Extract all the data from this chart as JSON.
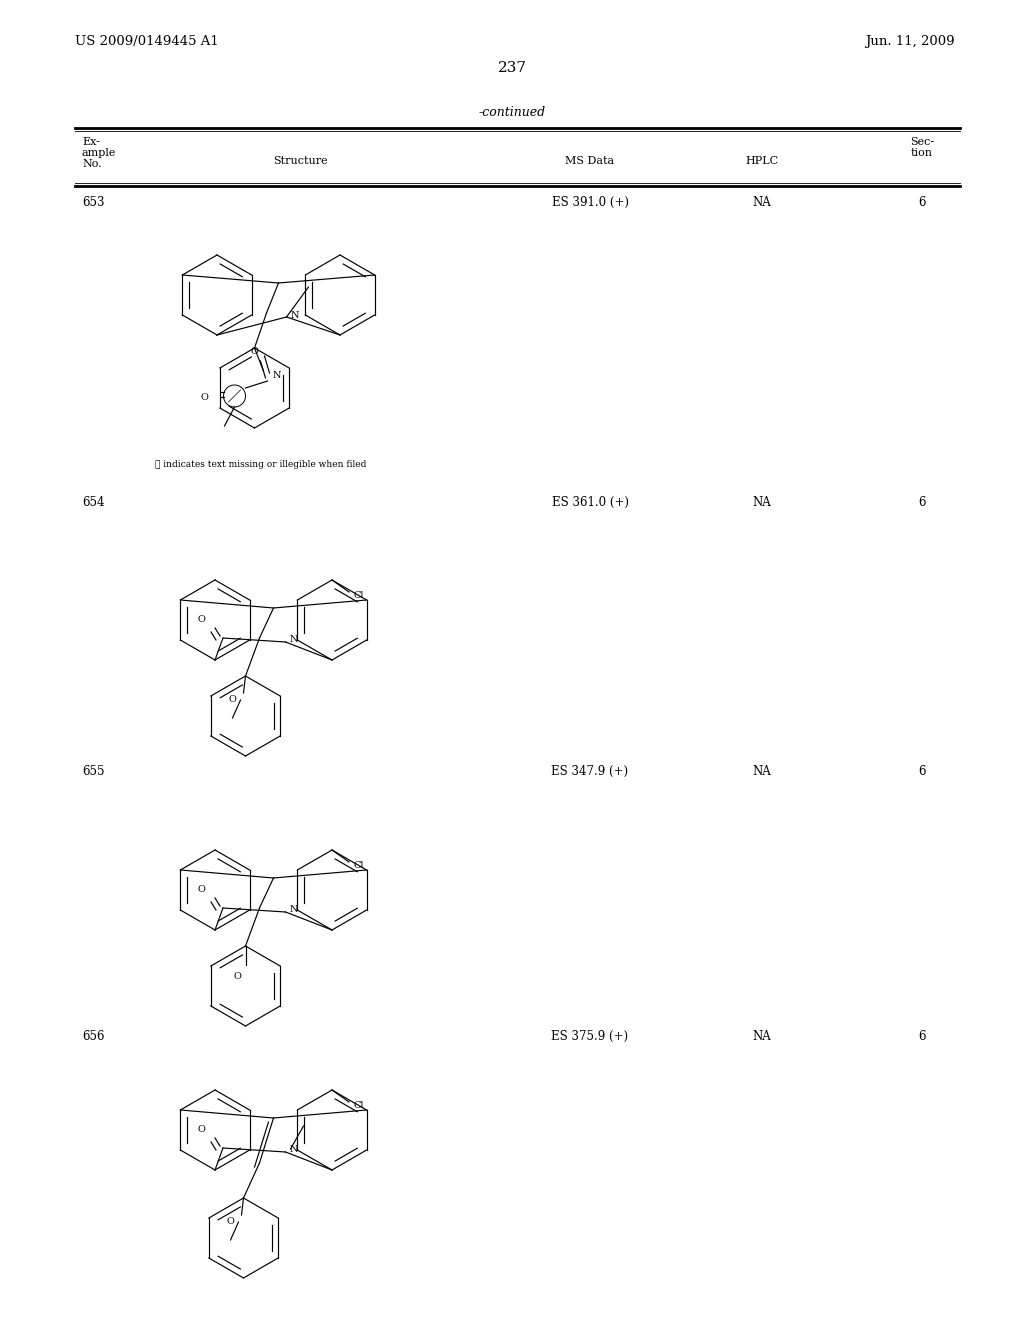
{
  "background": "#ffffff",
  "header_left": "US 2009/0149445 A1",
  "header_right": "Jun. 11, 2009",
  "page_num": "237",
  "table_continued": "-continued",
  "illegible_note": "ⓘ indicates text missing or illegible when filed",
  "rows": [
    {
      "id": "653",
      "ms": "ES 391.0 (+)",
      "hplc": "NA",
      "sec": "6"
    },
    {
      "id": "654",
      "ms": "ES 361.0 (+)",
      "hplc": "NA",
      "sec": "6"
    },
    {
      "id": "655",
      "ms": "ES 347.9 (+)",
      "hplc": "NA",
      "sec": "6"
    },
    {
      "id": "656",
      "ms": "ES 375.9 (+)",
      "hplc": "NA",
      "sec": "6"
    }
  ]
}
